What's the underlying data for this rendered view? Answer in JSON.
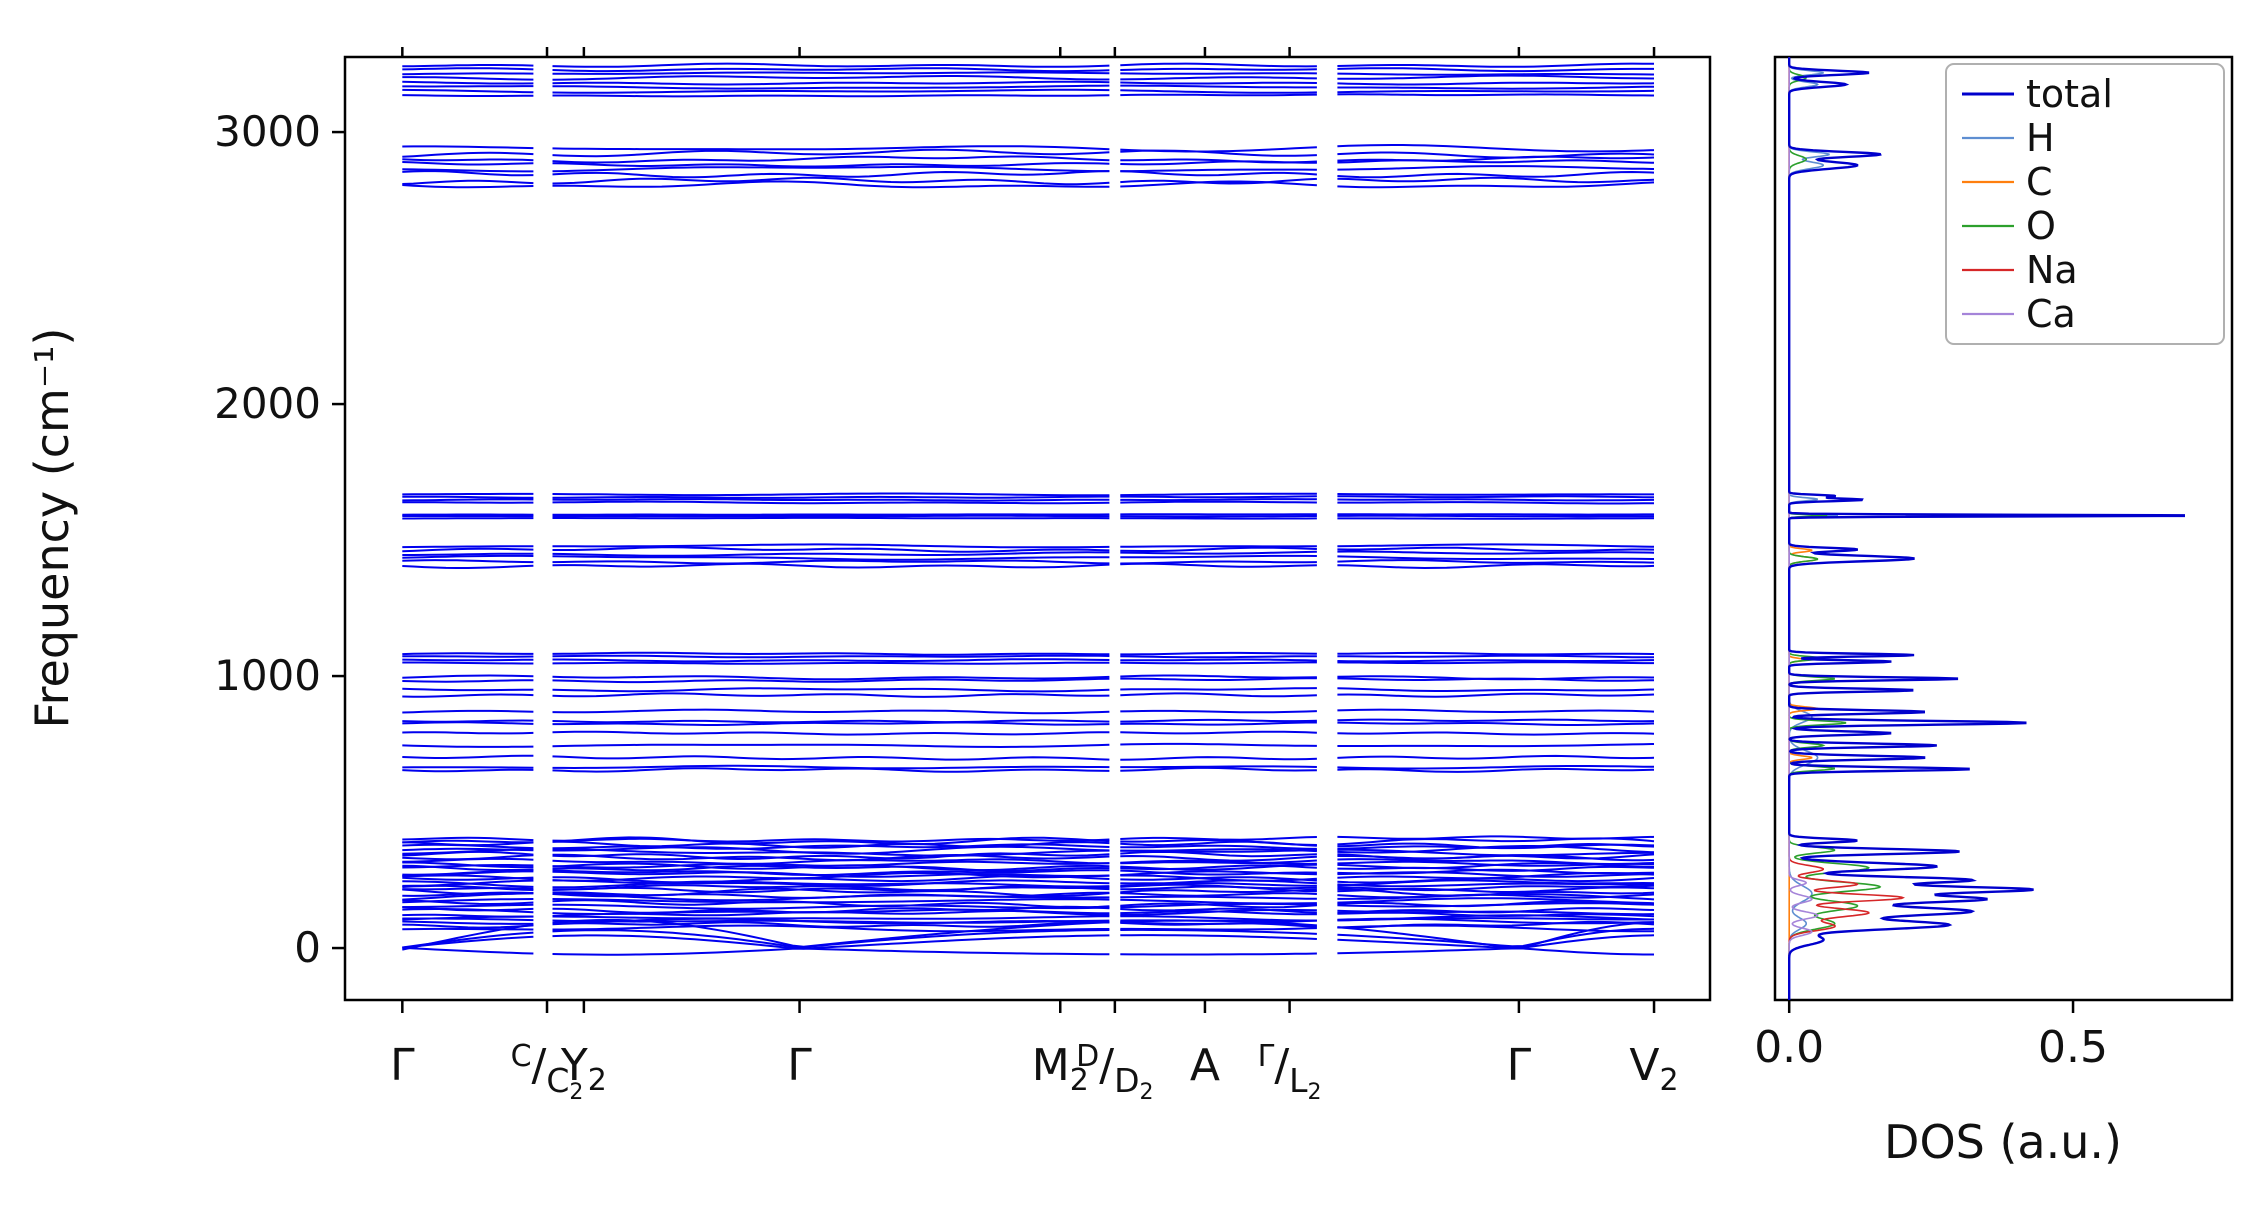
{
  "figure": {
    "background": "#ffffff"
  },
  "chart_data": [
    {
      "id": "phonon_band_structure",
      "type": "line",
      "title": "",
      "ylabel": "Frequency (cm⁻¹)",
      "ylim": [
        -191,
        3276
      ],
      "yticks": [
        {
          "value": 0,
          "label": "0"
        },
        {
          "value": 1000,
          "label": "1000"
        },
        {
          "value": 2000,
          "label": "2000"
        },
        {
          "value": 3000,
          "label": "3000"
        }
      ],
      "xticks": [
        {
          "pos": 0.042,
          "label": "Γ"
        },
        {
          "pos": 0.148,
          "label": "C|C_2"
        },
        {
          "pos": 0.175,
          "label": "Y_2"
        },
        {
          "pos": 0.333,
          "label": "Γ"
        },
        {
          "pos": 0.524,
          "label": "M_2"
        },
        {
          "pos": 0.564,
          "label": "D|D_2"
        },
        {
          "pos": 0.63,
          "label": "A"
        },
        {
          "pos": 0.692,
          "label": "Γ|L_2"
        },
        {
          "pos": 0.86,
          "label": "Γ"
        },
        {
          "pos": 0.959,
          "label": "V_2"
        }
      ],
      "x_range": [
        0.042,
        0.962
      ],
      "discontinuities": [
        0.148,
        0.564,
        0.723
      ],
      "band_color": "#0000ee",
      "grid": false,
      "band_groups": [
        {
          "name": "lattice-modes",
          "f_min": 75,
          "f_max": 400,
          "count": 34,
          "wiggle": 16
        },
        {
          "name": "librations",
          "lines": [
            655,
            665,
            700,
            745,
            790,
            825,
            835,
            870,
            930,
            950,
            985,
            995
          ],
          "wiggle": 9
        },
        {
          "name": "carbonate-sym-stretch",
          "lines": [
            1048,
            1058,
            1072,
            1082
          ],
          "wiggle": 5
        },
        {
          "name": "carbonate-asym-stretch",
          "lines": [
            1405,
            1420,
            1435,
            1450,
            1465,
            1478
          ],
          "wiggle": 12
        },
        {
          "name": "flat-band-1590",
          "lines": [
            1580,
            1588,
            1594
          ],
          "wiggle": 2
        },
        {
          "name": "water-bend",
          "lines": [
            1638,
            1648,
            1658,
            1668
          ],
          "wiggle": 4
        },
        {
          "name": "stretch-low",
          "lines": [
            2805,
            2820,
            2845,
            2865,
            2885,
            2900,
            2920,
            2940
          ],
          "wiggle": 16
        },
        {
          "name": "stretch-high",
          "lines": [
            3135,
            3150,
            3165,
            3180,
            3200,
            3215,
            3230,
            3245
          ],
          "wiggle": 9
        }
      ],
      "acoustic": {
        "zero_points": [
          0.042,
          0.333,
          0.86
        ],
        "amplitudes": [
          45,
          70,
          100,
          -25
        ]
      }
    },
    {
      "id": "phonon_dos",
      "type": "line",
      "xlabel": "DOS (a.u.)",
      "xlim": [
        -0.025,
        0.78
      ],
      "xticks": [
        {
          "value": 0.0,
          "label": "0.0"
        },
        {
          "value": 0.5,
          "label": "0.5"
        }
      ],
      "legend": {
        "position": "upper right",
        "entries": [
          {
            "label": "total",
            "color": "#0000cc"
          },
          {
            "label": "H",
            "color": "#5e8ed1"
          },
          {
            "label": "C",
            "color": "#ff7f0e"
          },
          {
            "label": "O",
            "color": "#2ca02c"
          },
          {
            "label": "Na",
            "color": "#d62728"
          },
          {
            "label": "Ca",
            "color": "#a584d9"
          }
        ]
      },
      "series": [
        {
          "name": "H",
          "color": "#5e8ed1",
          "peaks": [
            [
              90,
              0.03,
              30
            ],
            [
              200,
              0.04,
              40
            ],
            [
              700,
              0.05,
              35
            ],
            [
              850,
              0.04,
              28
            ],
            [
              1590,
              0.09,
              4
            ],
            [
              1650,
              0.05,
              8
            ],
            [
              2878,
              0.06,
              18
            ],
            [
              2918,
              0.07,
              13
            ],
            [
              3175,
              0.05,
              13
            ],
            [
              3218,
              0.06,
              11
            ]
          ]
        },
        {
          "name": "C",
          "color": "#ff7f0e",
          "peaks": [
            [
              700,
              0.04,
              9
            ],
            [
              880,
              0.05,
              9
            ],
            [
              1060,
              0.03,
              7
            ],
            [
              1430,
              0.05,
              11
            ],
            [
              1462,
              0.04,
              8
            ]
          ]
        },
        {
          "name": "O",
          "color": "#2ca02c",
          "peaks": [
            [
              90,
              0.08,
              28
            ],
            [
              155,
              0.12,
              26
            ],
            [
              225,
              0.16,
              24
            ],
            [
              295,
              0.14,
              22
            ],
            [
              360,
              0.08,
              15
            ],
            [
              660,
              0.08,
              10
            ],
            [
              745,
              0.06,
              10
            ],
            [
              828,
              0.1,
              10
            ],
            [
              990,
              0.08,
              9
            ],
            [
              1065,
              0.06,
              9
            ],
            [
              1430,
              0.05,
              11
            ],
            [
              1590,
              0.07,
              4
            ],
            [
              2900,
              0.03,
              18
            ],
            [
              3200,
              0.03,
              14
            ]
          ]
        },
        {
          "name": "Na",
          "color": "#d62728",
          "peaks": [
            [
              80,
              0.08,
              22
            ],
            [
              130,
              0.14,
              22
            ],
            [
              185,
              0.2,
              18
            ],
            [
              235,
              0.12,
              18
            ],
            [
              290,
              0.06,
              18
            ]
          ]
        },
        {
          "name": "Ca",
          "color": "#a584d9",
          "peaks": [
            [
              60,
              0.04,
              18
            ],
            [
              120,
              0.05,
              18
            ],
            [
              180,
              0.04,
              18
            ],
            [
              240,
              0.03,
              14
            ]
          ]
        },
        {
          "name": "total",
          "color": "#0000cc",
          "peaks": [
            [
              30,
              0.06,
              25
            ],
            [
              85,
              0.28,
              22
            ],
            [
              135,
              0.32,
              22
            ],
            [
              180,
              0.34,
              18
            ],
            [
              215,
              0.42,
              16
            ],
            [
              250,
              0.32,
              16
            ],
            [
              300,
              0.26,
              18
            ],
            [
              355,
              0.3,
              13
            ],
            [
              395,
              0.12,
              10
            ],
            [
              658,
              0.32,
              9
            ],
            [
              700,
              0.24,
              10
            ],
            [
              745,
              0.26,
              9
            ],
            [
              790,
              0.18,
              9
            ],
            [
              828,
              0.42,
              10
            ],
            [
              868,
              0.24,
              9
            ],
            [
              948,
              0.22,
              8
            ],
            [
              990,
              0.3,
              8
            ],
            [
              1053,
              0.18,
              7
            ],
            [
              1077,
              0.22,
              7
            ],
            [
              1432,
              0.22,
              14
            ],
            [
              1465,
              0.12,
              9
            ],
            [
              1590,
              0.74,
              4
            ],
            [
              1648,
              0.13,
              7
            ],
            [
              1662,
              0.08,
              6
            ],
            [
              2878,
              0.12,
              18
            ],
            [
              2918,
              0.16,
              13
            ],
            [
              3175,
              0.1,
              13
            ],
            [
              3218,
              0.14,
              11
            ]
          ]
        }
      ]
    }
  ]
}
